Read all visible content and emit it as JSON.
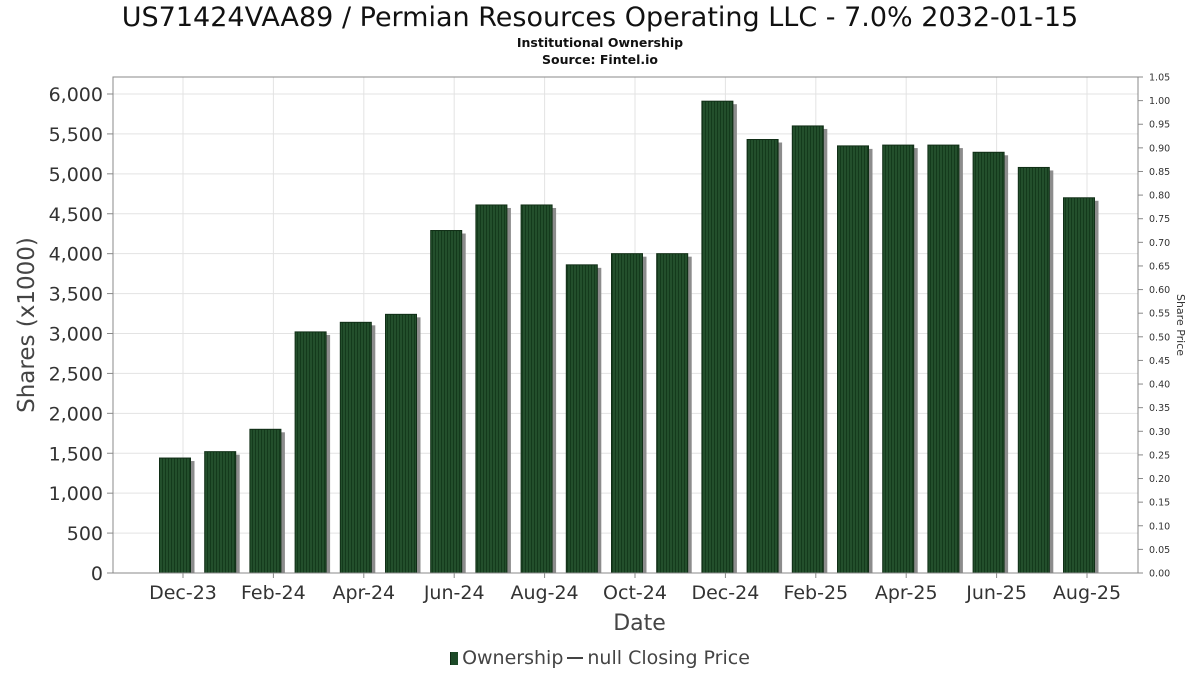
{
  "chart_data": {
    "type": "bar",
    "title": "US71424VAA89 / Permian Resources Operating LLC - 7.0% 2032-01-15",
    "subtitle": "Institutional Ownership",
    "source": "Source: Fintel.io",
    "xlabel": "Date",
    "ylabel": "Shares (x1000)",
    "y2label": "Share Price",
    "ylim": [
      0,
      6000
    ],
    "y2lim": [
      0,
      1.05
    ],
    "x_tick_labels": [
      "Dec-23",
      "Feb-24",
      "Apr-24",
      "Jun-24",
      "Aug-24",
      "Oct-24",
      "Dec-24",
      "Feb-25",
      "Apr-25",
      "Jun-25",
      "Aug-25"
    ],
    "y_tick_labels": [
      "0",
      "500",
      "1,000",
      "1,500",
      "2,000",
      "2,500",
      "3,000",
      "3,500",
      "4,000",
      "4,500",
      "5,000",
      "5,500",
      "6,000"
    ],
    "y2_tick_labels": [
      "0.00",
      "0.05",
      "0.10",
      "0.15",
      "0.20",
      "0.25",
      "0.30",
      "0.35",
      "0.40",
      "0.45",
      "0.50",
      "0.55",
      "0.60",
      "0.65",
      "0.70",
      "0.75",
      "0.80",
      "0.85",
      "0.90",
      "0.95",
      "1.00",
      "1.05"
    ],
    "series": [
      {
        "name": "Ownership",
        "color": "#1d4a28",
        "values": [
          1440,
          1520,
          1800,
          3020,
          3140,
          3240,
          4290,
          4610,
          4610,
          3860,
          4000,
          4000,
          5910,
          5430,
          5600,
          5350,
          5360,
          5360,
          5270,
          5080,
          4700
        ]
      }
    ],
    "legend": {
      "position": "bottom",
      "entries": [
        "Ownership",
        "null Closing Price"
      ]
    },
    "grid": true
  }
}
